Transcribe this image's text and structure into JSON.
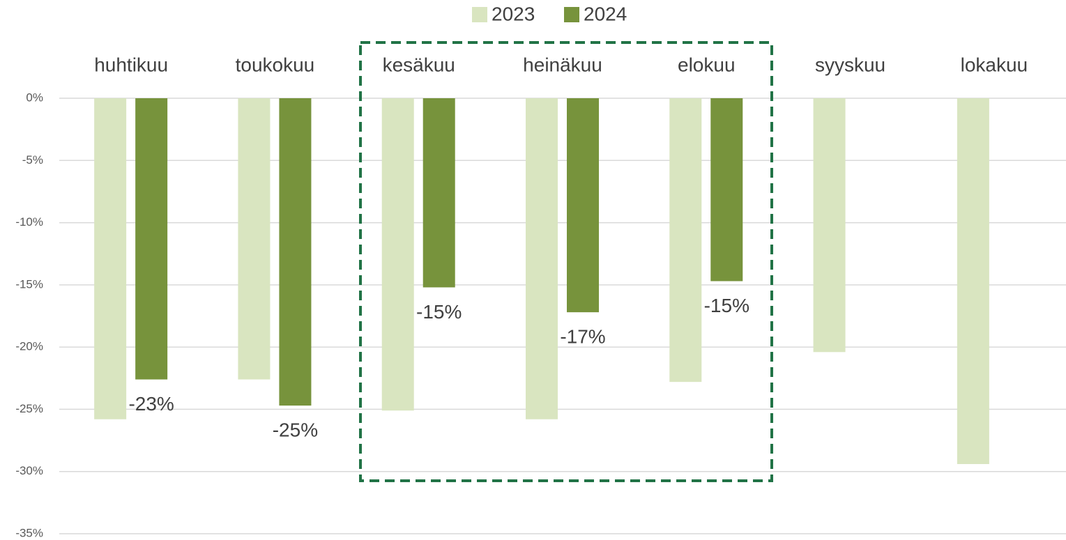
{
  "chart_data": {
    "type": "bar",
    "categories": [
      "huhtikuu",
      "toukokuu",
      "kesäkuu",
      "heinäkuu",
      "elokuu",
      "syyskuu",
      "lokakuu"
    ],
    "series": [
      {
        "name": "2023",
        "color": "#d9e5c0",
        "values": [
          -25.8,
          -22.6,
          -25.1,
          -25.8,
          -22.8,
          -20.4,
          -29.4
        ]
      },
      {
        "name": "2024",
        "color": "#77933c",
        "values": [
          -22.6,
          -24.7,
          -15.2,
          -17.2,
          -14.7,
          null,
          null
        ],
        "value_labels": [
          "-23%",
          "-25%",
          "-15%",
          "-17%",
          "-15%",
          null,
          null
        ]
      }
    ],
    "ylim": [
      -35,
      0
    ],
    "yticks": [
      {
        "value": 0,
        "label": "0%"
      },
      {
        "value": -5,
        "label": "-5%"
      },
      {
        "value": -10,
        "label": "-10%"
      },
      {
        "value": -15,
        "label": "-15%"
      },
      {
        "value": -20,
        "label": "-20%"
      },
      {
        "value": -25,
        "label": "-25%"
      },
      {
        "value": -30,
        "label": "-30%"
      },
      {
        "value": -35,
        "label": "-35%"
      }
    ],
    "grid": true,
    "legend": "top"
  }
}
